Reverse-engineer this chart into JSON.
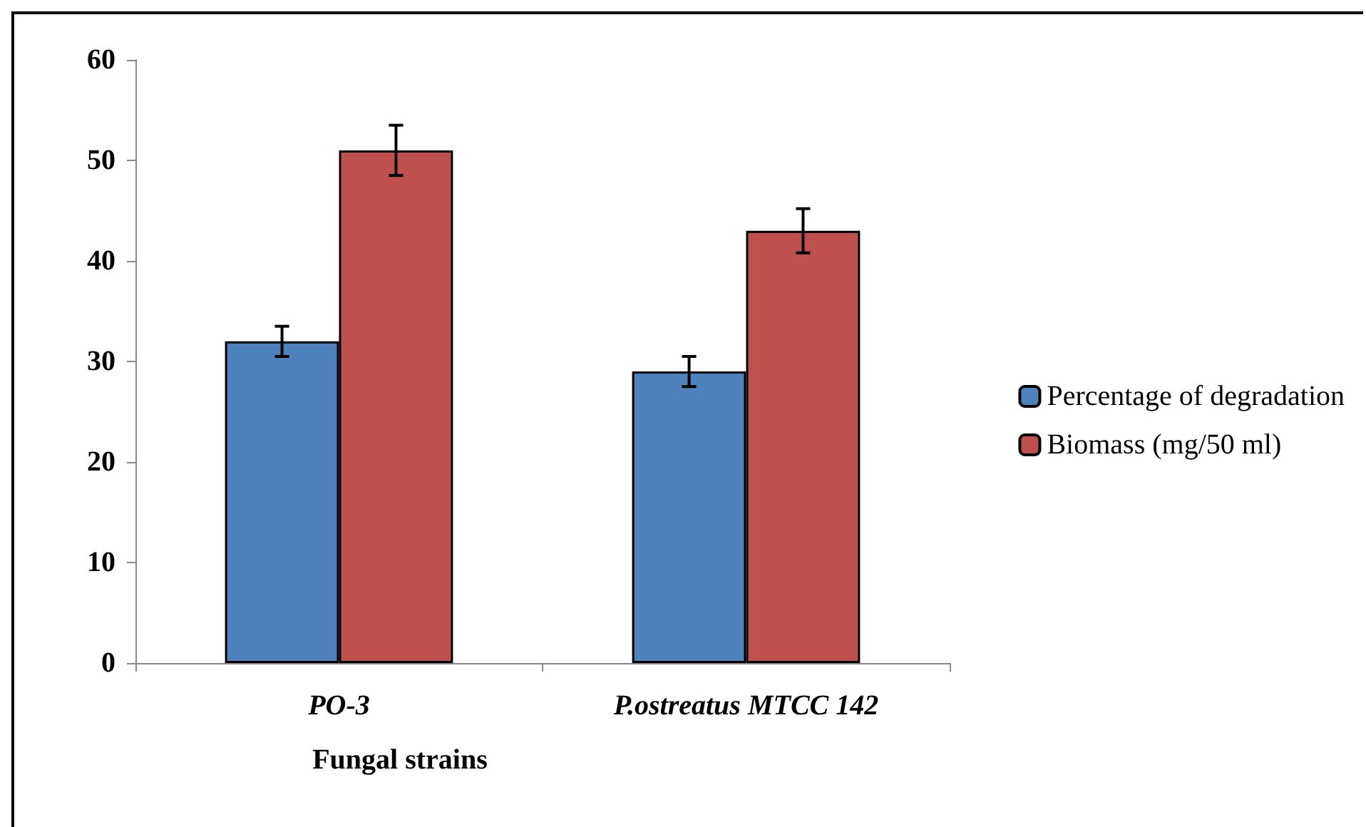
{
  "chart_data": {
    "type": "bar",
    "xlabel": "Fungal strains",
    "categories": [
      "PO-3",
      "P.ostreatus MTCC 142"
    ],
    "series": [
      {
        "name": "Percentage of degradation",
        "color": "#4f81bd",
        "values": [
          32,
          29
        ],
        "errors": [
          1.5,
          1.5
        ]
      },
      {
        "name": "Biomass (mg/50 ml)",
        "color": "#c0504d",
        "values": [
          51,
          43
        ],
        "errors": [
          2.5,
          2.2
        ]
      }
    ],
    "ylim": [
      0,
      60
    ],
    "yticks": [
      0,
      10,
      20,
      30,
      40,
      50,
      60
    ],
    "grid": false,
    "legend": "right"
  }
}
